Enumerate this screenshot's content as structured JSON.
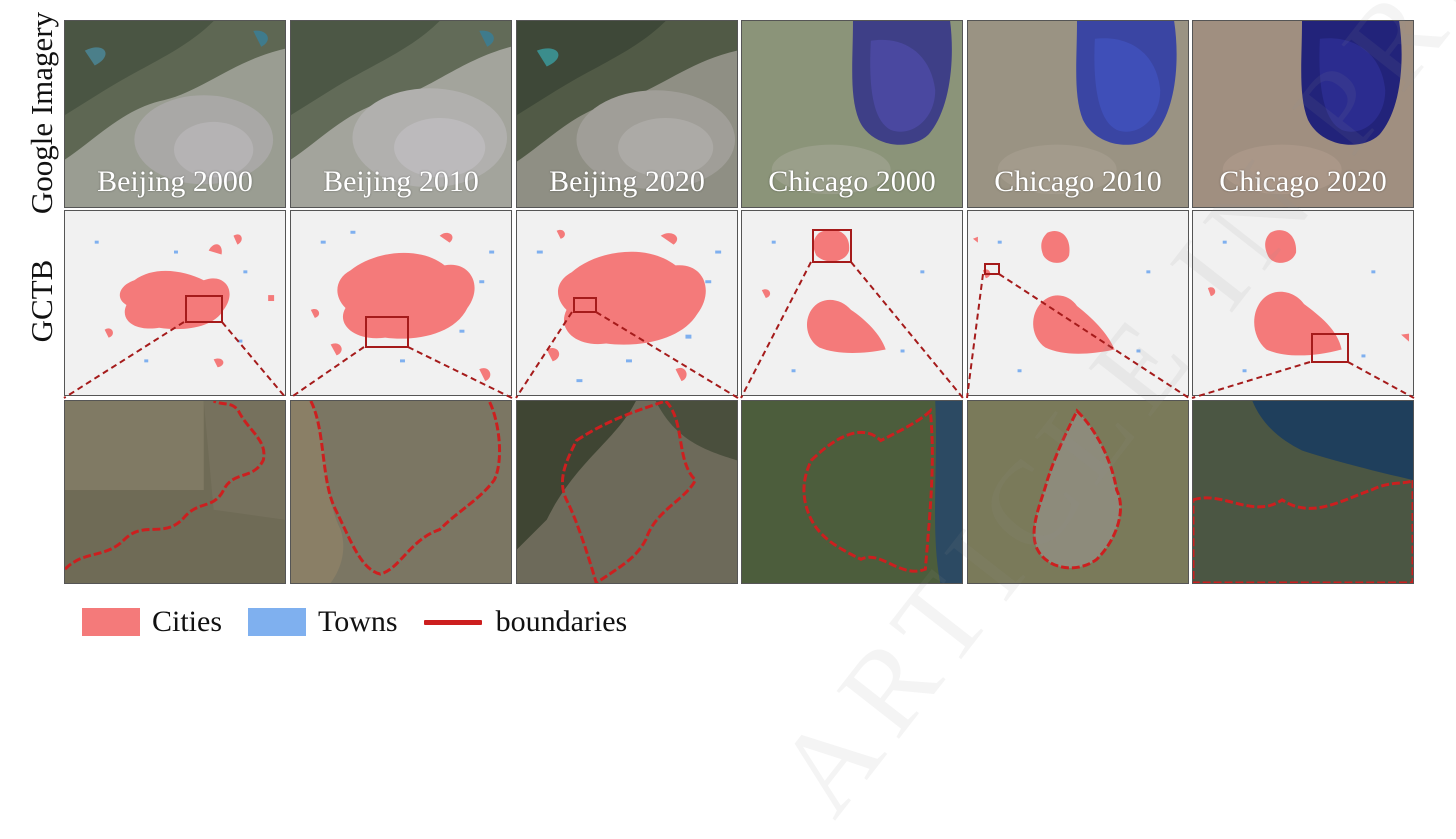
{
  "row_labels": {
    "imagery": "Google Imagery",
    "gctb": "GCTB"
  },
  "panels": [
    {
      "label": "Beijing 2000"
    },
    {
      "label": "Beijing 2010"
    },
    {
      "label": "Beijing 2020"
    },
    {
      "label": "Chicago 2000"
    },
    {
      "label": "Chicago 2010"
    },
    {
      "label": "Chicago 2020"
    }
  ],
  "legend": {
    "cities": {
      "label": "Cities",
      "color": "#f47a7a"
    },
    "towns": {
      "label": "Towns",
      "color": "#7fb0ef"
    },
    "boundaries": {
      "label": "boundaries",
      "color": "#cc1f1f"
    }
  },
  "watermark": "ARTICLE IN PRESS"
}
